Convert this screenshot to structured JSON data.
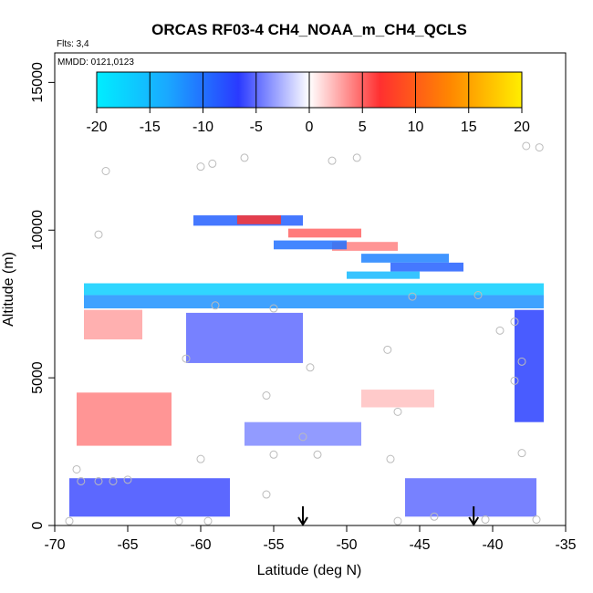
{
  "chart_data": {
    "type": "heatmap",
    "title": "ORCAS RF03-4 CH4_NOAA_m_CH4_QCLS",
    "annotations": {
      "flights": "Flts: 3,4",
      "dates": "MMDD: 0121,0123"
    },
    "xlabel": "Latitude (deg N)",
    "ylabel": "Altitude (m)",
    "xlim": [
      -70,
      -35
    ],
    "ylim": [
      0,
      16000
    ],
    "x_ticks": [
      -70,
      -65,
      -60,
      -55,
      -50,
      -45,
      -40,
      -35
    ],
    "y_ticks": [
      0,
      5000,
      10000,
      15000
    ],
    "colorbar": {
      "range": [
        -20,
        20
      ],
      "ticks": [
        -20,
        -15,
        -10,
        -5,
        0,
        5,
        10,
        15,
        20
      ],
      "tick_labels": [
        "-20",
        "-15",
        "-10",
        "-5",
        "0",
        "5",
        "10",
        "15",
        "20"
      ],
      "colors": [
        "#00eeff",
        "#1aa8ff",
        "#2a3aff",
        "#ffffff",
        "#ff3030",
        "#ff8800",
        "#ffee00"
      ]
    },
    "markers": [
      {
        "type": "arrow",
        "x": -53
      },
      {
        "type": "arrow",
        "x": -41.3
      }
    ],
    "regions": [
      {
        "x": [
          -68,
          -36.5
        ],
        "y": [
          7350,
          7800
        ],
        "value": -12
      },
      {
        "x": [
          -68,
          -36.5
        ],
        "y": [
          7800,
          8200
        ],
        "value": -17
      },
      {
        "x": [
          -60.5,
          -53
        ],
        "y": [
          10150,
          10500
        ],
        "value": -9
      },
      {
        "x": [
          -57.5,
          -54.5
        ],
        "y": [
          10200,
          10500
        ],
        "value": 7
      },
      {
        "x": [
          -54,
          -49
        ],
        "y": [
          9750,
          10050
        ],
        "value": 5
      },
      {
        "x": [
          -51,
          -46.5
        ],
        "y": [
          9300,
          9600
        ],
        "value": 4
      },
      {
        "x": [
          -55,
          -50
        ],
        "y": [
          9350,
          9650
        ],
        "value": -10
      },
      {
        "x": [
          -49,
          -43
        ],
        "y": [
          8900,
          9200
        ],
        "value": -11
      },
      {
        "x": [
          -47,
          -42
        ],
        "y": [
          8600,
          8900
        ],
        "value": -9
      },
      {
        "x": [
          -50,
          -45
        ],
        "y": [
          8350,
          8600
        ],
        "value": -15
      },
      {
        "x": [
          -61,
          -53
        ],
        "y": [
          5500,
          7200
        ],
        "value": -5
      },
      {
        "x": [
          -38.5,
          -36.5
        ],
        "y": [
          3500,
          7300
        ],
        "value": -7
      },
      {
        "x": [
          -68,
          -64
        ],
        "y": [
          6300,
          7300
        ],
        "value": 3
      },
      {
        "x": [
          -68.5,
          -62
        ],
        "y": [
          2700,
          4500
        ],
        "value": 4
      },
      {
        "x": [
          -49,
          -44
        ],
        "y": [
          4000,
          4600
        ],
        "value": 2
      },
      {
        "x": [
          -57,
          -49
        ],
        "y": [
          2700,
          3500
        ],
        "value": -4
      },
      {
        "x": [
          -69,
          -58
        ],
        "y": [
          300,
          1600
        ],
        "value": -6
      },
      {
        "x": [
          -46,
          -37
        ],
        "y": [
          300,
          1600
        ],
        "value": -5
      }
    ],
    "points": [
      [
        -66.5,
        12000
      ],
      [
        -60,
        12150
      ],
      [
        -59.2,
        12250
      ],
      [
        -57,
        12450
      ],
      [
        -51,
        12350
      ],
      [
        -49.3,
        12450
      ],
      [
        -37.7,
        12850
      ],
      [
        -36.8,
        12800
      ],
      [
        -67,
        9850
      ],
      [
        -59,
        7450
      ],
      [
        -55,
        7350
      ],
      [
        -45.5,
        7750
      ],
      [
        -41,
        7800
      ],
      [
        -61,
        5650
      ],
      [
        -52.5,
        5350
      ],
      [
        -47.2,
        5950
      ],
      [
        -39.5,
        6600
      ],
      [
        -38.5,
        6900
      ],
      [
        -38,
        5550
      ],
      [
        -38.5,
        4900
      ],
      [
        -55.5,
        4400
      ],
      [
        -46.5,
        3850
      ],
      [
        -53,
        3000
      ],
      [
        -52,
        2400
      ],
      [
        -55,
        2400
      ],
      [
        -60,
        2250
      ],
      [
        -47,
        2250
      ],
      [
        -38,
        2450
      ],
      [
        -68.5,
        1900
      ],
      [
        -68.2,
        1500
      ],
      [
        -67,
        1500
      ],
      [
        -66,
        1500
      ],
      [
        -65,
        1550
      ],
      [
        -55.5,
        1050
      ],
      [
        -69,
        150
      ],
      [
        -61.5,
        150
      ],
      [
        -59.5,
        150
      ],
      [
        -46.5,
        150
      ],
      [
        -44,
        300
      ],
      [
        -40.5,
        200
      ],
      [
        -37,
        200
      ]
    ]
  }
}
